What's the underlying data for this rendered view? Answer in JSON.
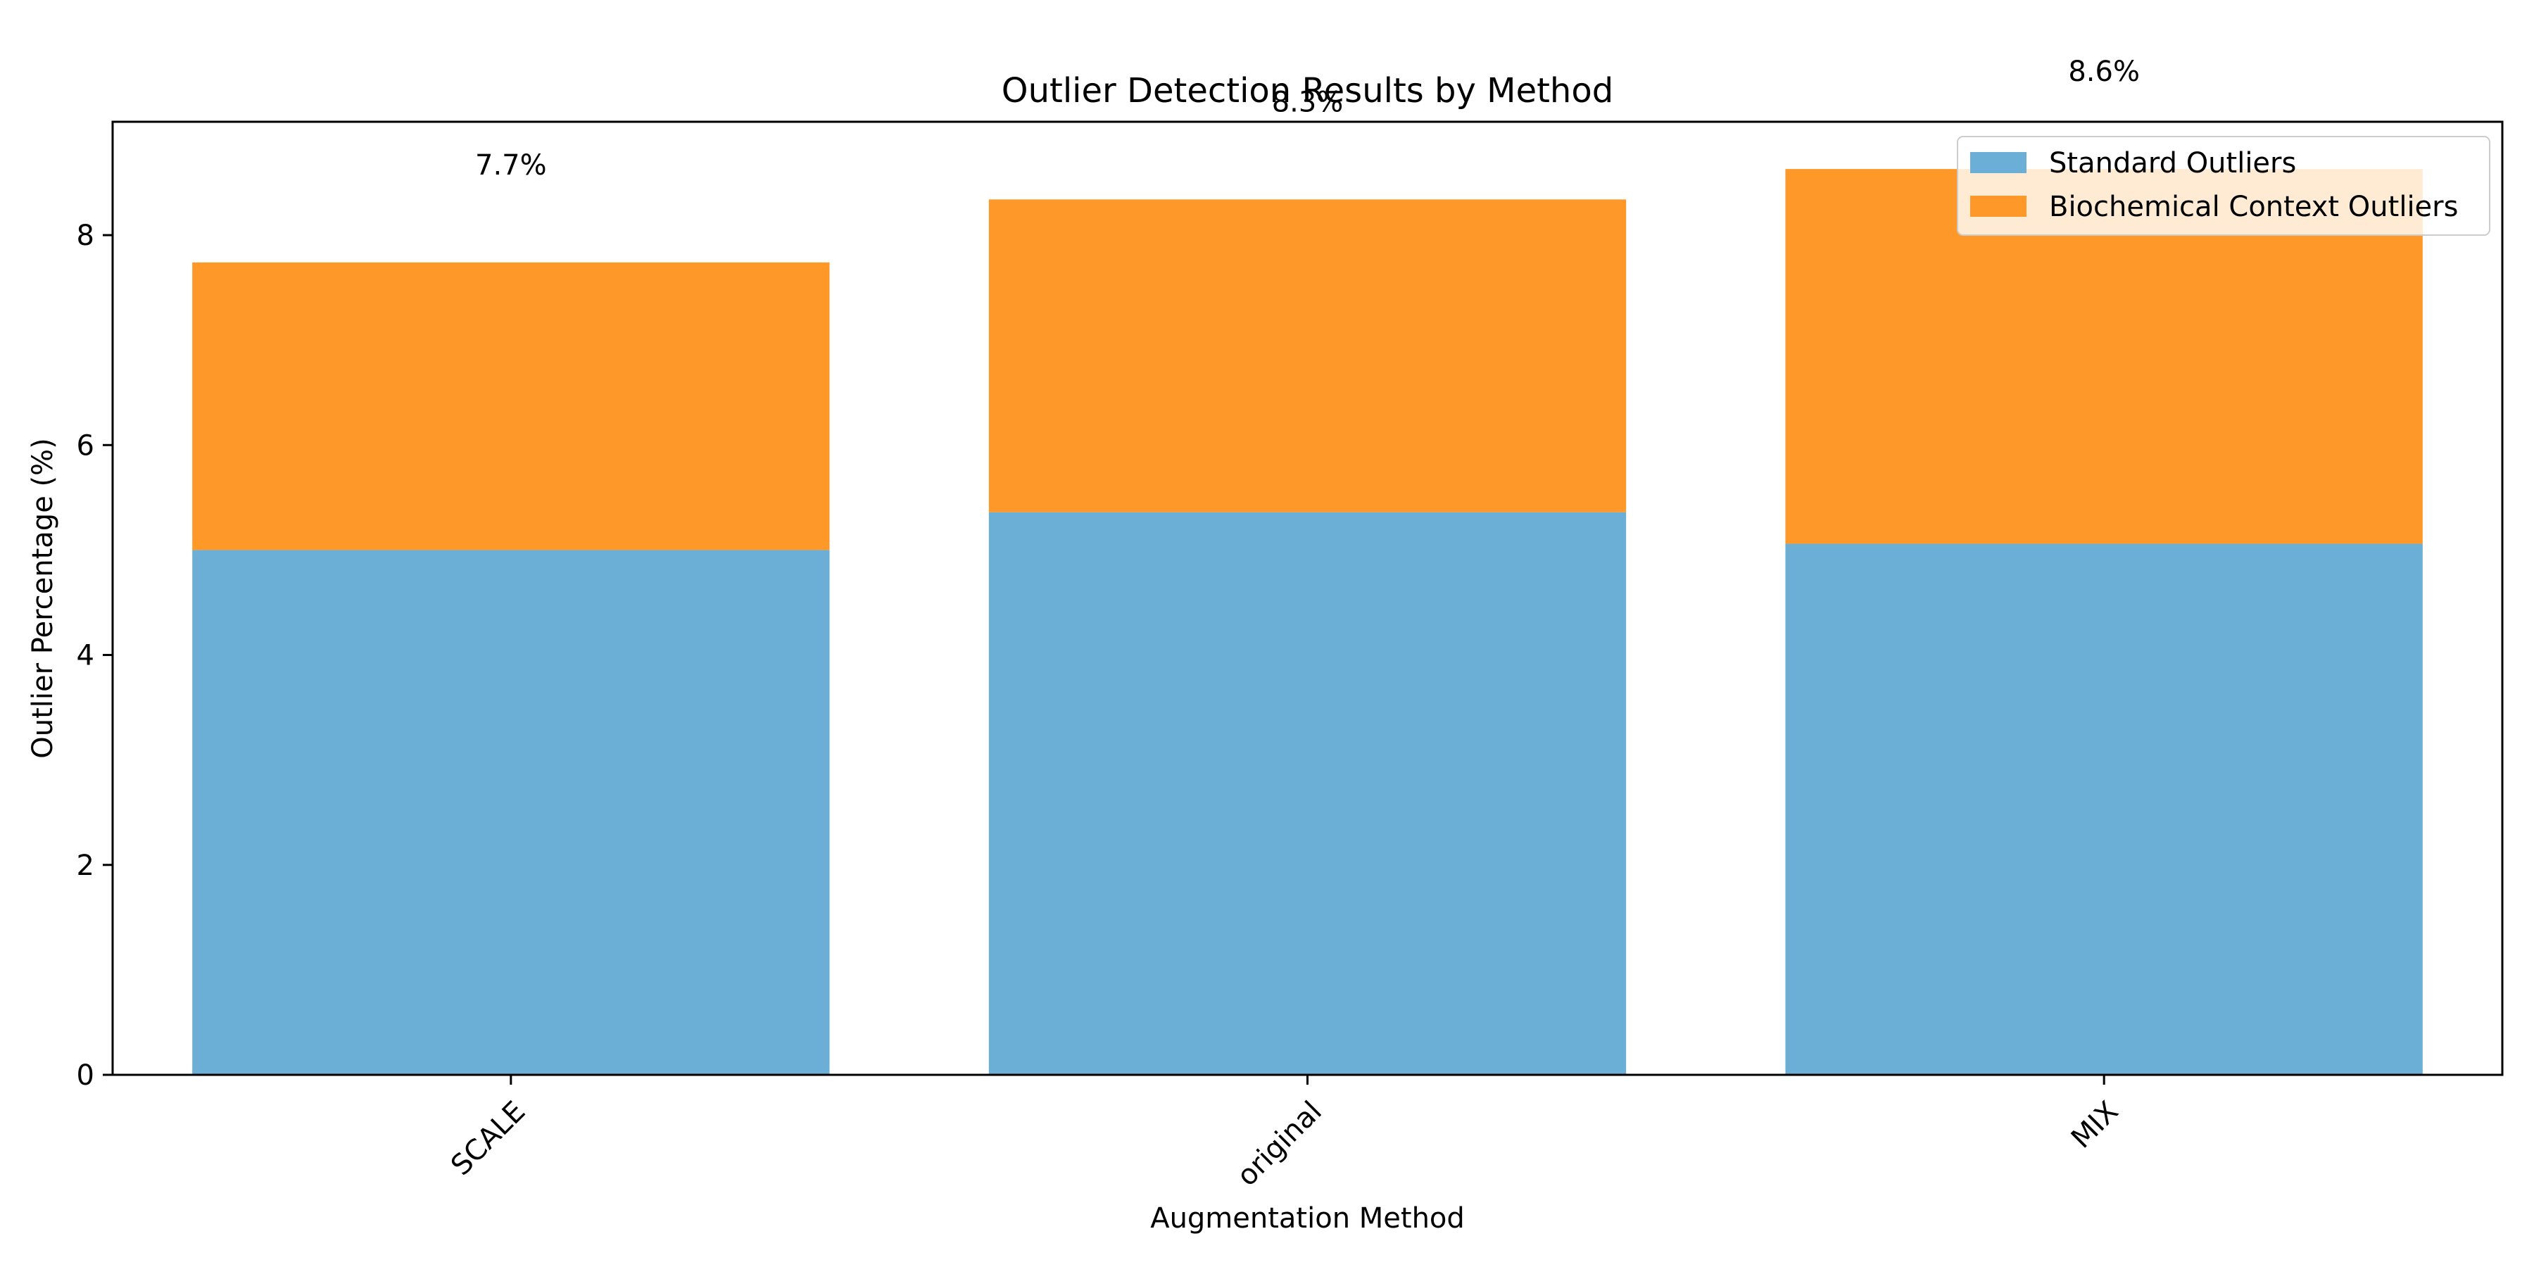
{
  "chart_data": {
    "type": "bar",
    "stacked": true,
    "title": "Outlier Detection Results by Method",
    "xlabel": "Augmentation Method",
    "ylabel": "Outlier Percentage (%)",
    "categories": [
      "SCALE",
      "original",
      "MIX"
    ],
    "series": [
      {
        "name": "Standard Outliers",
        "color": "#6baed6",
        "values": [
          5.0,
          5.36,
          5.06
        ]
      },
      {
        "name": "Biochemical Context Outliers",
        "color": "#fe9929",
        "values": [
          2.74,
          2.98,
          3.57
        ]
      }
    ],
    "total_labels": [
      "7.7%",
      "8.3%",
      "8.6%"
    ],
    "ylim": [
      0,
      9.08
    ],
    "yticks": [
      0,
      2,
      4,
      6,
      8
    ],
    "grid": false,
    "legend_position": "top-right",
    "x_tick_rotation": "45 degrees"
  }
}
